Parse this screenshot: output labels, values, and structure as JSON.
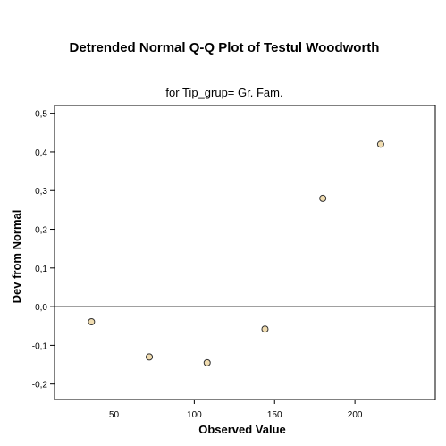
{
  "chart_data": {
    "type": "scatter",
    "title": "Detrended Normal Q-Q Plot of Testul Woodworth",
    "subtitle": "for Tip_grup= Gr. Fam.",
    "xlabel": "Observed Value",
    "ylabel": "Dev from Normal",
    "xlim": [
      13,
      250
    ],
    "ylim": [
      -0.24,
      0.52
    ],
    "x_ticks": [
      50,
      100,
      150,
      200
    ],
    "y_ticks": [
      -0.2,
      -0.1,
      0.0,
      0.1,
      0.2,
      0.3,
      0.4,
      0.5
    ],
    "x_tick_labels": [
      "50",
      "100",
      "150",
      "200"
    ],
    "y_tick_labels": [
      "-0,2",
      "-0,1",
      "0,0",
      "0,1",
      "0,2",
      "0,3",
      "0,4",
      "0,5"
    ],
    "reference_line_y": 0,
    "grid": false,
    "marker_fill": "#f0dcb0",
    "marker_stroke": "#333333",
    "points": [
      {
        "x": 36,
        "y": -0.039
      },
      {
        "x": 72,
        "y": -0.13
      },
      {
        "x": 108,
        "y": -0.145
      },
      {
        "x": 144,
        "y": -0.058
      },
      {
        "x": 180,
        "y": 0.28
      },
      {
        "x": 216,
        "y": 0.42
      }
    ]
  }
}
